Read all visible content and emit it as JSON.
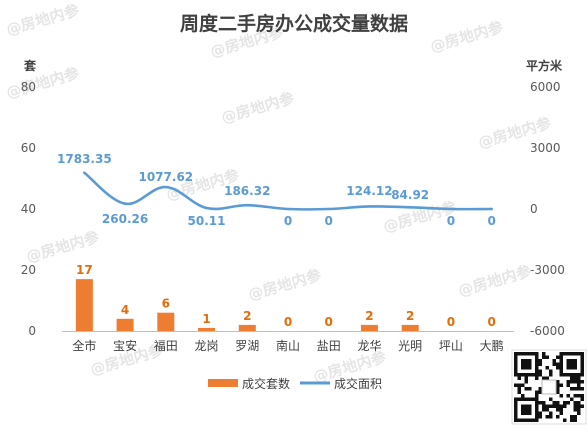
{
  "title": "周度二手房办公成交量数据",
  "watermark": "@房地内参",
  "chart_data": {
    "type": "bar+line",
    "title": "周度二手房办公成交量数据",
    "categories": [
      "全市",
      "宝安",
      "福田",
      "龙岗",
      "罗湖",
      "南山",
      "盐田",
      "龙华",
      "光明",
      "坪山",
      "大鹏"
    ],
    "y_left": {
      "unit": "套",
      "range": [
        0,
        80
      ],
      "ticks": [
        "0",
        "20",
        "40",
        "60",
        "80"
      ]
    },
    "y_right": {
      "unit": "平方米",
      "range": [
        -6000,
        6000
      ],
      "ticks": [
        "-6000",
        "-3000",
        "0",
        "3000",
        "6000"
      ]
    },
    "series": [
      {
        "name": "成交套数",
        "type": "bar",
        "axis": "left",
        "color": "#ed7d31",
        "values": [
          17,
          4,
          6,
          1,
          2,
          0,
          0,
          2,
          2,
          0,
          0
        ],
        "labels": [
          "17",
          "4",
          "6",
          "1",
          "2",
          "0",
          "0",
          "2",
          "2",
          "0",
          "0"
        ]
      },
      {
        "name": "成交面积",
        "type": "line",
        "axis": "right",
        "color": "#5b9bd5",
        "values": [
          1783.35,
          260.26,
          1077.62,
          50.11,
          186.32,
          0,
          0,
          124.12,
          84.92,
          0,
          0
        ],
        "labels": [
          "1783.35",
          "260.26",
          "1077.62",
          "50.11",
          "186.32",
          "0",
          "0",
          "124.12",
          "84.92",
          "0",
          "0"
        ]
      }
    ],
    "legend": "bottom",
    "grid": false
  }
}
